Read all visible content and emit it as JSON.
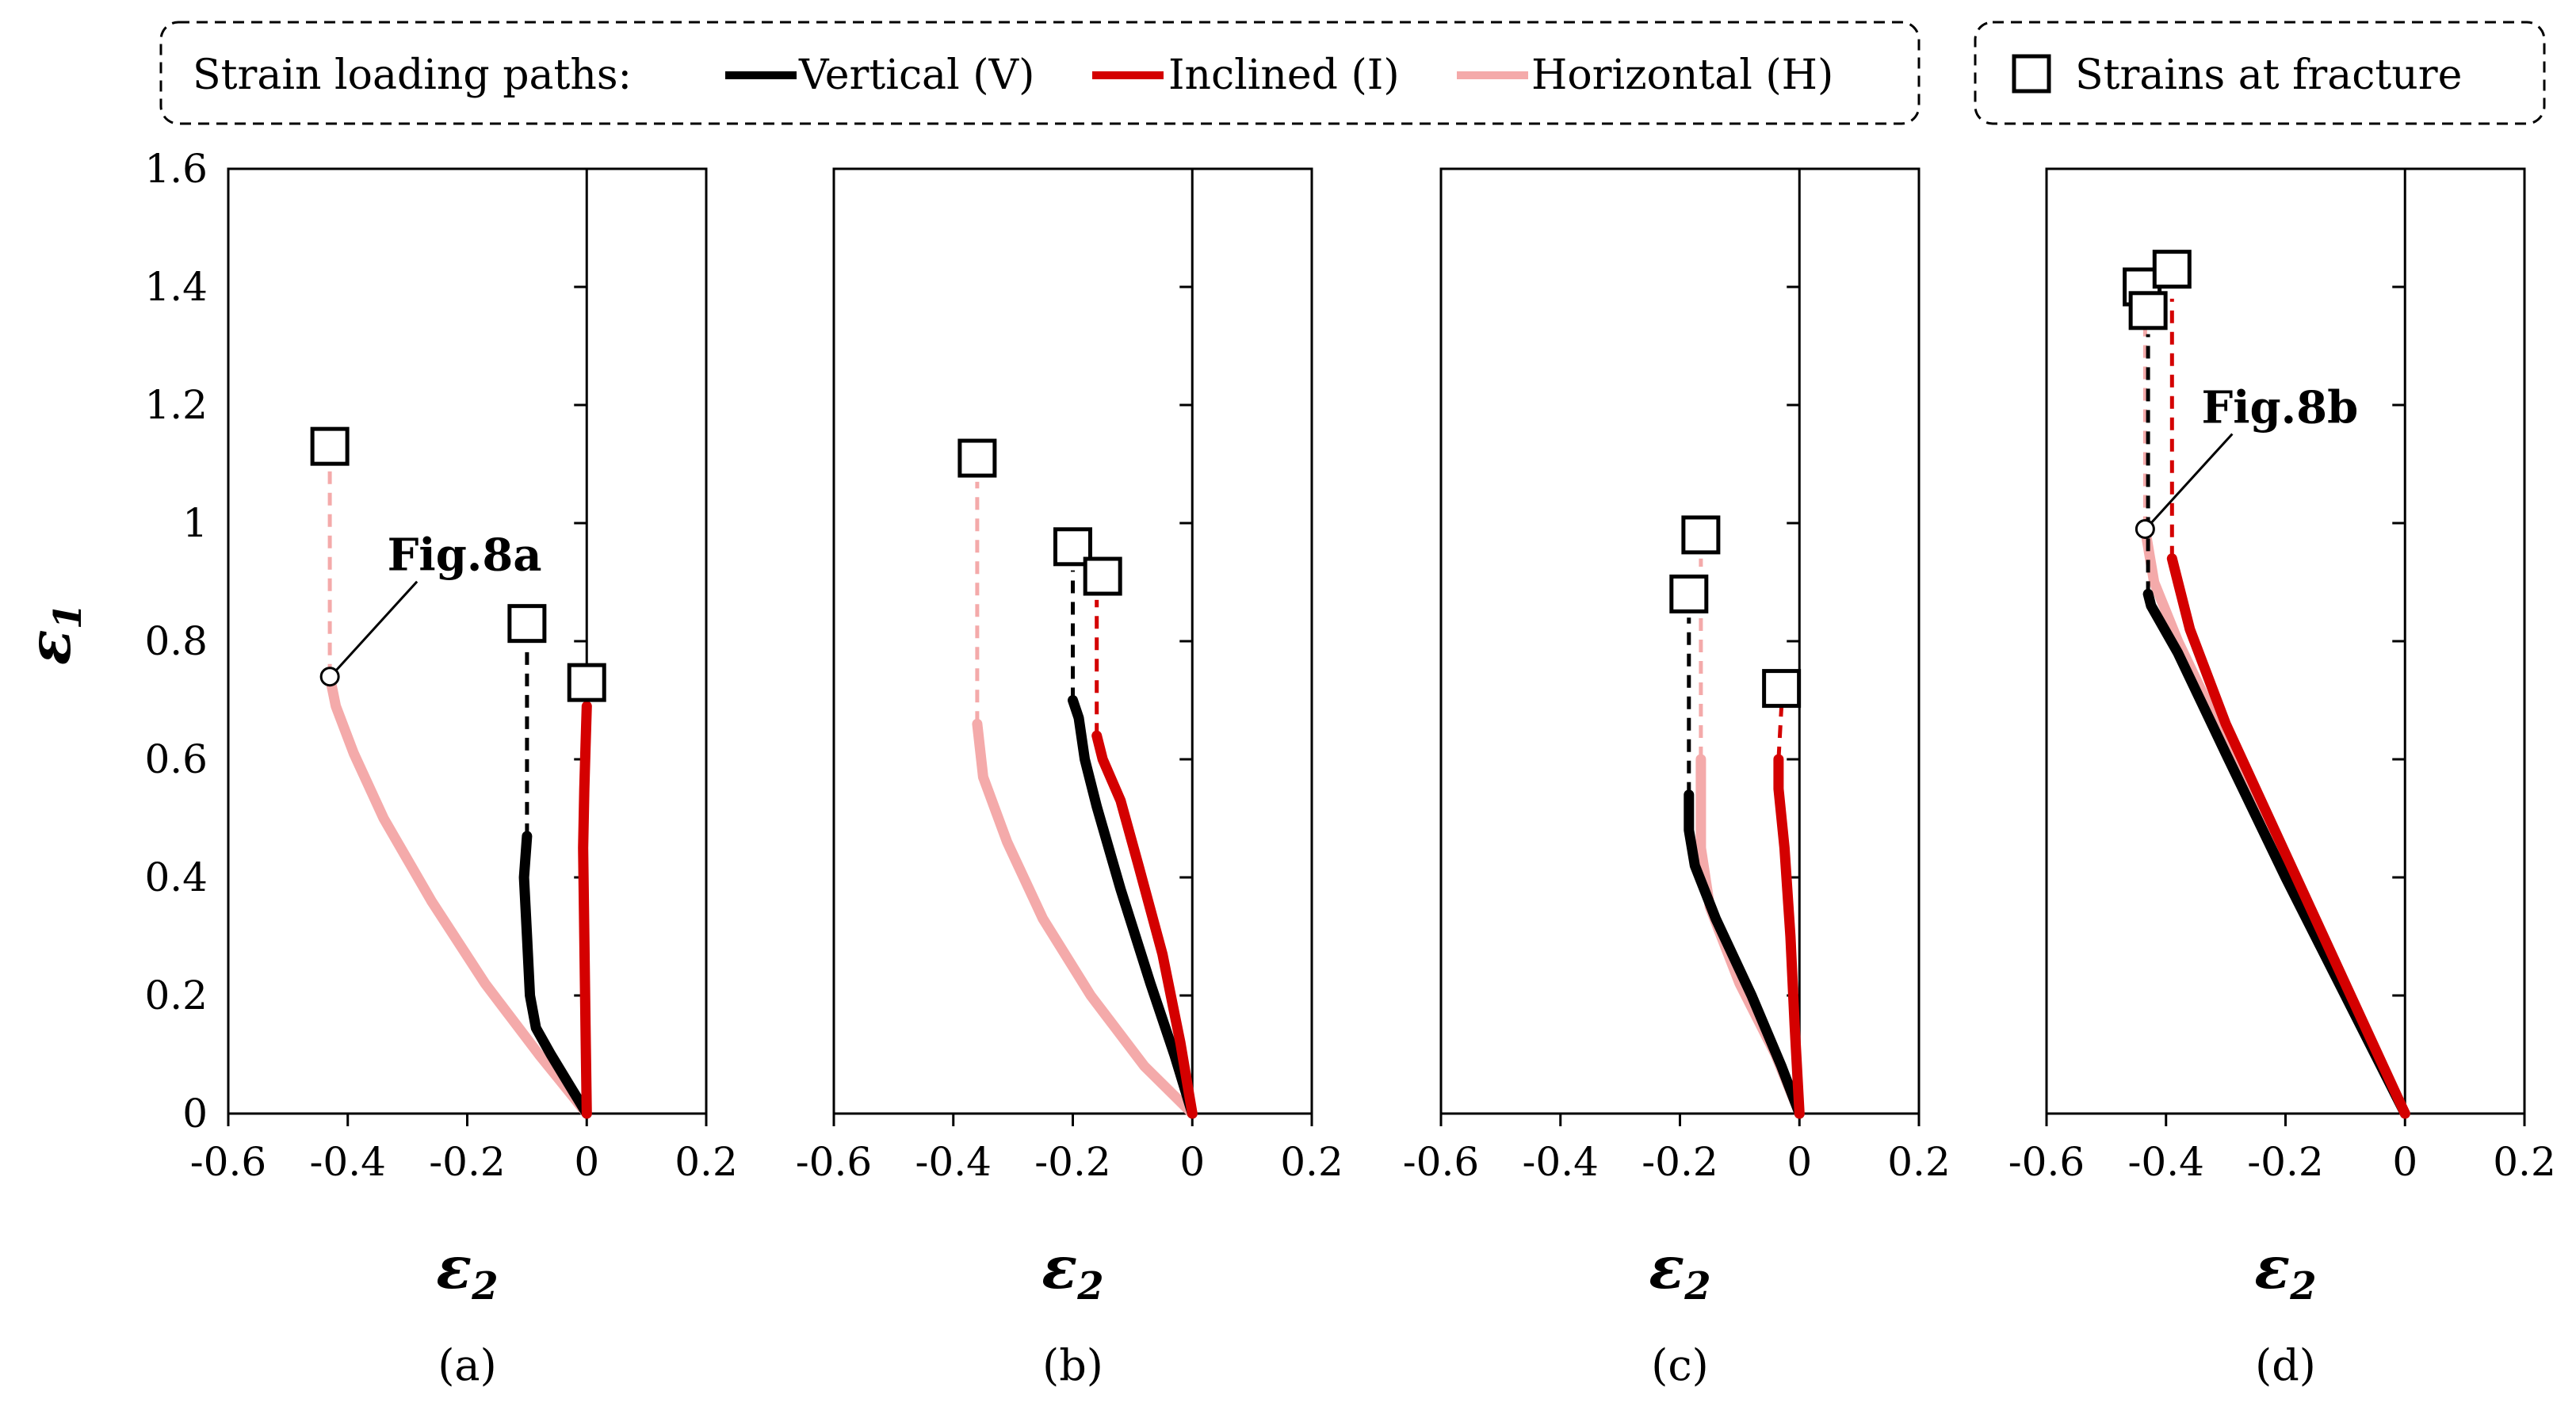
{
  "legend": {
    "paths_title": "Strain loading paths:",
    "fracture_label": "Strains at fracture",
    "entries": [
      {
        "label": "Vertical (V)",
        "color": "#000000"
      },
      {
        "label": "Inclined (I)",
        "color": "#d40000"
      },
      {
        "label": "Horizontal (H)",
        "color": "#f4aaaa"
      }
    ]
  },
  "axes": {
    "xlabel": "ε",
    "xlabel_sub": "2",
    "ylabel": "ε",
    "ylabel_sub": "1",
    "xlim": [
      -0.6,
      0.2
    ],
    "ylim": [
      0,
      1.6
    ],
    "xticks": [
      "-0.6",
      "-0.4",
      "-0.2",
      "0",
      "0.2"
    ],
    "yticks": [
      "0",
      "0.2",
      "0.4",
      "0.6",
      "0.8",
      "1",
      "1.2",
      "1.4",
      "1.6"
    ]
  },
  "colors": {
    "V": "#000000",
    "I": "#d40000",
    "H": "#f4aaaa"
  },
  "chart_data": [
    {
      "type": "line",
      "panel_label": "(a)",
      "annotation": {
        "text": "Fig.8a",
        "point": [
          -0.43,
          0.74
        ]
      },
      "series": [
        {
          "name": "Vertical (V)",
          "key": "V",
          "path": [
            [
              0,
              0
            ],
            [
              -0.03,
              0.05
            ],
            [
              -0.06,
              0.1
            ],
            [
              -0.085,
              0.145
            ],
            [
              -0.095,
              0.2
            ],
            [
              -0.1,
              0.3
            ],
            [
              -0.105,
              0.4
            ],
            [
              -0.1,
              0.47
            ]
          ],
          "dashed": [
            [
              -0.1,
              0.47
            ],
            [
              -0.1,
              0.79
            ]
          ],
          "fracture": [
            -0.1,
            0.83
          ]
        },
        {
          "name": "Inclined (I)",
          "key": "I",
          "path": [
            [
              0,
              0
            ],
            [
              -0.002,
              0.15
            ],
            [
              -0.004,
              0.3
            ],
            [
              -0.006,
              0.45
            ],
            [
              -0.004,
              0.55
            ],
            [
              -0.002,
              0.62
            ],
            [
              0.0,
              0.69
            ]
          ],
          "dashed": [],
          "fracture": [
            0.0,
            0.73
          ]
        },
        {
          "name": "Horizontal (H)",
          "key": "H",
          "path": [
            [
              0,
              0
            ],
            [
              -0.08,
              0.1
            ],
            [
              -0.17,
              0.22
            ],
            [
              -0.26,
              0.36
            ],
            [
              -0.34,
              0.5
            ],
            [
              -0.39,
              0.61
            ],
            [
              -0.42,
              0.69
            ],
            [
              -0.43,
              0.74
            ]
          ],
          "dashed": [
            [
              -0.43,
              0.74
            ],
            [
              -0.43,
              1.09
            ]
          ],
          "fracture": [
            -0.43,
            1.13
          ]
        }
      ]
    },
    {
      "type": "line",
      "panel_label": "(b)",
      "series": [
        {
          "name": "Vertical (V)",
          "key": "V",
          "path": [
            [
              0,
              0
            ],
            [
              -0.03,
              0.1
            ],
            [
              -0.07,
              0.22
            ],
            [
              -0.12,
              0.38
            ],
            [
              -0.16,
              0.52
            ],
            [
              -0.18,
              0.6
            ],
            [
              -0.19,
              0.67
            ],
            [
              -0.2,
              0.7
            ]
          ],
          "dashed": [
            [
              -0.2,
              0.7
            ],
            [
              -0.2,
              0.92
            ]
          ],
          "fracture": [
            -0.2,
            0.96
          ]
        },
        {
          "name": "Inclined (I)",
          "key": "I",
          "path": [
            [
              0,
              0
            ],
            [
              -0.02,
              0.12
            ],
            [
              -0.05,
              0.27
            ],
            [
              -0.09,
              0.42
            ],
            [
              -0.12,
              0.53
            ],
            [
              -0.15,
              0.6
            ],
            [
              -0.16,
              0.64
            ]
          ],
          "dashed": [
            [
              -0.16,
              0.64
            ],
            [
              -0.16,
              0.87
            ]
          ],
          "fracture": [
            -0.15,
            0.91
          ]
        },
        {
          "name": "Horizontal (H)",
          "key": "H",
          "path": [
            [
              0,
              0
            ],
            [
              -0.08,
              0.08
            ],
            [
              -0.17,
              0.2
            ],
            [
              -0.25,
              0.33
            ],
            [
              -0.31,
              0.46
            ],
            [
              -0.35,
              0.57
            ],
            [
              -0.36,
              0.66
            ]
          ],
          "dashed": [
            [
              -0.36,
              0.66
            ],
            [
              -0.36,
              1.07
            ]
          ],
          "fracture": [
            -0.36,
            1.11
          ]
        }
      ]
    },
    {
      "type": "line",
      "panel_label": "(c)",
      "series": [
        {
          "name": "Vertical (V)",
          "key": "V",
          "path": [
            [
              0,
              0
            ],
            [
              -0.03,
              0.08
            ],
            [
              -0.08,
              0.2
            ],
            [
              -0.14,
              0.33
            ],
            [
              -0.175,
              0.42
            ],
            [
              -0.185,
              0.48
            ],
            [
              -0.185,
              0.54
            ]
          ],
          "dashed": [
            [
              -0.185,
              0.54
            ],
            [
              -0.185,
              0.84
            ]
          ],
          "fracture": [
            -0.185,
            0.88
          ]
        },
        {
          "name": "Inclined (I)",
          "key": "I",
          "path": [
            [
              0,
              0
            ],
            [
              -0.008,
              0.15
            ],
            [
              -0.015,
              0.3
            ],
            [
              -0.025,
              0.45
            ],
            [
              -0.035,
              0.55
            ],
            [
              -0.035,
              0.6
            ]
          ],
          "dashed": [
            [
              -0.035,
              0.6
            ],
            [
              -0.03,
              0.69
            ]
          ],
          "fracture": [
            -0.03,
            0.72
          ]
        },
        {
          "name": "Horizontal (H)",
          "key": "H",
          "path": [
            [
              0,
              0
            ],
            [
              -0.04,
              0.1
            ],
            [
              -0.1,
              0.22
            ],
            [
              -0.15,
              0.35
            ],
            [
              -0.165,
              0.45
            ],
            [
              -0.165,
              0.6
            ]
          ],
          "dashed": [
            [
              -0.165,
              0.6
            ],
            [
              -0.165,
              0.94
            ]
          ],
          "fracture": [
            -0.165,
            0.98
          ]
        }
      ]
    },
    {
      "type": "line",
      "panel_label": "(d)",
      "annotation": {
        "text": "Fig.8b",
        "point": [
          -0.435,
          0.99
        ]
      },
      "series": [
        {
          "name": "Vertical (V)",
          "key": "V",
          "path": [
            [
              0,
              0
            ],
            [
              -0.1,
              0.2
            ],
            [
              -0.2,
              0.4
            ],
            [
              -0.3,
              0.61
            ],
            [
              -0.38,
              0.78
            ],
            [
              -0.425,
              0.86
            ],
            [
              -0.43,
              0.88
            ]
          ],
          "dashed": [
            [
              -0.43,
              0.88
            ],
            [
              -0.43,
              1.32
            ]
          ],
          "fracture": [
            -0.43,
            1.36
          ]
        },
        {
          "name": "Inclined (I)",
          "key": "I",
          "path": [
            [
              0,
              0
            ],
            [
              -0.1,
              0.22
            ],
            [
              -0.2,
              0.44
            ],
            [
              -0.3,
              0.66
            ],
            [
              -0.36,
              0.82
            ],
            [
              -0.38,
              0.9
            ],
            [
              -0.39,
              0.94
            ]
          ],
          "dashed": [
            [
              -0.39,
              0.94
            ],
            [
              -0.39,
              1.38
            ]
          ],
          "fracture": [
            -0.39,
            1.43
          ]
        },
        {
          "name": "Horizontal (H)",
          "key": "H",
          "path": [
            [
              0,
              0
            ],
            [
              -0.1,
              0.21
            ],
            [
              -0.2,
              0.42
            ],
            [
              -0.3,
              0.63
            ],
            [
              -0.38,
              0.8
            ],
            [
              -0.42,
              0.9
            ],
            [
              -0.435,
              0.99
            ]
          ],
          "dashed": [
            [
              -0.435,
              0.99
            ],
            [
              -0.435,
              1.36
            ]
          ],
          "fracture": [
            -0.44,
            1.4
          ]
        }
      ]
    }
  ]
}
